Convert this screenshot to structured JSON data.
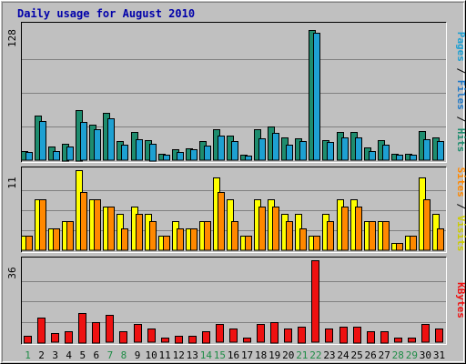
{
  "chart_data": {
    "type": "bar",
    "title": "Daily usage for August 2010",
    "colors": {
      "background": "#c0c0c0",
      "plot_bg": "#c0c0c0",
      "title": "#0000aa",
      "grid": "#808080",
      "hits": "#1e8c6e",
      "files": "#1ea0d2",
      "pages": "#1e78c8",
      "visits": "#ffff00",
      "sites": "#ff8800",
      "kbytes": "#ee1111",
      "weekend": "#1e8c46",
      "weekday": "#000080",
      "axis_text": "#000000"
    },
    "days": [
      "1",
      "2",
      "3",
      "4",
      "5",
      "6",
      "7",
      "8",
      "9",
      "10",
      "11",
      "12",
      "13",
      "14",
      "15",
      "16",
      "17",
      "18",
      "19",
      "20",
      "21",
      "22",
      "23",
      "24",
      "25",
      "26",
      "27",
      "28",
      "29",
      "30",
      "31"
    ],
    "weekend_days": [
      "1",
      "7",
      "8",
      "14",
      "15",
      "21",
      "22",
      "28",
      "29"
    ],
    "top_panel": {
      "max_label": "128",
      "ylim": [
        0,
        128
      ],
      "legend": [
        {
          "text": "Pages",
          "color": "#1ea0d2"
        },
        {
          "text": " / ",
          "color": "#000000"
        },
        {
          "text": "Files",
          "color": "#1e78c8"
        },
        {
          "text": " / ",
          "color": "#000000"
        },
        {
          "text": "Hits",
          "color": "#1e8c6e"
        }
      ],
      "series": [
        {
          "name": "Hits",
          "values": [
            9,
            42,
            13,
            16,
            48,
            34,
            45,
            18,
            27,
            19,
            6,
            10,
            11,
            18,
            29,
            23,
            5,
            29,
            32,
            22,
            21,
            124,
            19,
            27,
            27,
            12,
            19,
            6,
            6,
            28,
            22
          ]
        },
        {
          "name": "Files",
          "values": [
            8,
            37,
            9,
            13,
            36,
            29,
            40,
            15,
            20,
            16,
            5,
            8,
            10,
            14,
            23,
            18,
            4,
            21,
            26,
            15,
            18,
            121,
            17,
            22,
            22,
            9,
            15,
            5,
            5,
            20,
            18
          ]
        }
      ]
    },
    "mid_panel": {
      "max_label": "11",
      "ylim": [
        0,
        11
      ],
      "legend": [
        {
          "text": "Sites",
          "color": "#ff8800"
        },
        {
          "text": " / ",
          "color": "#000000"
        },
        {
          "text": "Visits",
          "color": "#cccc00"
        }
      ],
      "series": [
        {
          "name": "Visits",
          "values": [
            2,
            7,
            3,
            4,
            11,
            7,
            6,
            5,
            6,
            5,
            2,
            4,
            3,
            4,
            10,
            7,
            2,
            7,
            7,
            5,
            5,
            2,
            5,
            7,
            7,
            4,
            4,
            1,
            2,
            10,
            5
          ]
        },
        {
          "name": "Sites",
          "values": [
            2,
            7,
            3,
            4,
            8,
            7,
            6,
            3,
            5,
            4,
            2,
            3,
            3,
            4,
            8,
            4,
            2,
            6,
            6,
            4,
            3,
            2,
            4,
            6,
            6,
            4,
            4,
            1,
            2,
            7,
            3
          ]
        }
      ]
    },
    "bottom_panel": {
      "max_label": "36",
      "ylim": [
        0,
        36
      ],
      "legend": [
        {
          "text": "KBytes",
          "color": "#ee1111"
        }
      ],
      "series": [
        {
          "name": "KBytes",
          "values": [
            3,
            11,
            4,
            5,
            13,
            9,
            12,
            5,
            8,
            6,
            2,
            3,
            3,
            5,
            8,
            6,
            2,
            8,
            9,
            6,
            7,
            36,
            6,
            7,
            7,
            5,
            5,
            2,
            2,
            8,
            6
          ]
        }
      ]
    }
  }
}
